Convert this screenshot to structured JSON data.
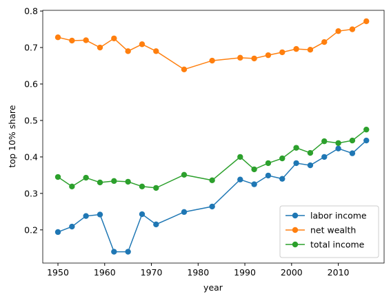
{
  "chart_data": {
    "type": "line",
    "x_label": "year",
    "y_label": "top 10% share",
    "x": [
      1950,
      1953,
      1956,
      1959,
      1962,
      1965,
      1968,
      1971,
      1977,
      1983,
      1989,
      1992,
      1995,
      1998,
      2001,
      2004,
      2007,
      2010,
      2013,
      2016
    ],
    "series": [
      {
        "name": "labor income",
        "color": "#1f77b4",
        "values": [
          0.194,
          0.209,
          0.238,
          0.242,
          0.14,
          0.14,
          0.243,
          0.215,
          0.249,
          0.264,
          0.338,
          0.325,
          0.349,
          0.34,
          0.383,
          0.377,
          0.4,
          0.423,
          0.41,
          0.445
        ]
      },
      {
        "name": "net wealth",
        "color": "#ff7f0e",
        "values": [
          0.728,
          0.719,
          0.72,
          0.7,
          0.725,
          0.69,
          0.709,
          0.69,
          0.64,
          0.664,
          0.672,
          0.67,
          0.679,
          0.687,
          0.696,
          0.694,
          0.715,
          0.745,
          0.75,
          0.772
        ]
      },
      {
        "name": "total income",
        "color": "#2ca02c",
        "values": [
          0.345,
          0.319,
          0.343,
          0.33,
          0.334,
          0.332,
          0.319,
          0.315,
          0.351,
          0.336,
          0.4,
          0.366,
          0.383,
          0.396,
          0.425,
          0.411,
          0.443,
          0.438,
          0.445,
          0.475
        ]
      }
    ],
    "xlim": [
      1946.75,
      2019.8
    ],
    "xticks": [
      1950,
      1960,
      1970,
      1980,
      1990,
      2000,
      2010
    ],
    "ylim": [
      0.109,
      0.802
    ],
    "yticks": [
      0.2,
      0.3,
      0.4,
      0.5,
      0.6,
      0.7,
      0.8
    ],
    "legend": "lower right",
    "markers": true
  }
}
